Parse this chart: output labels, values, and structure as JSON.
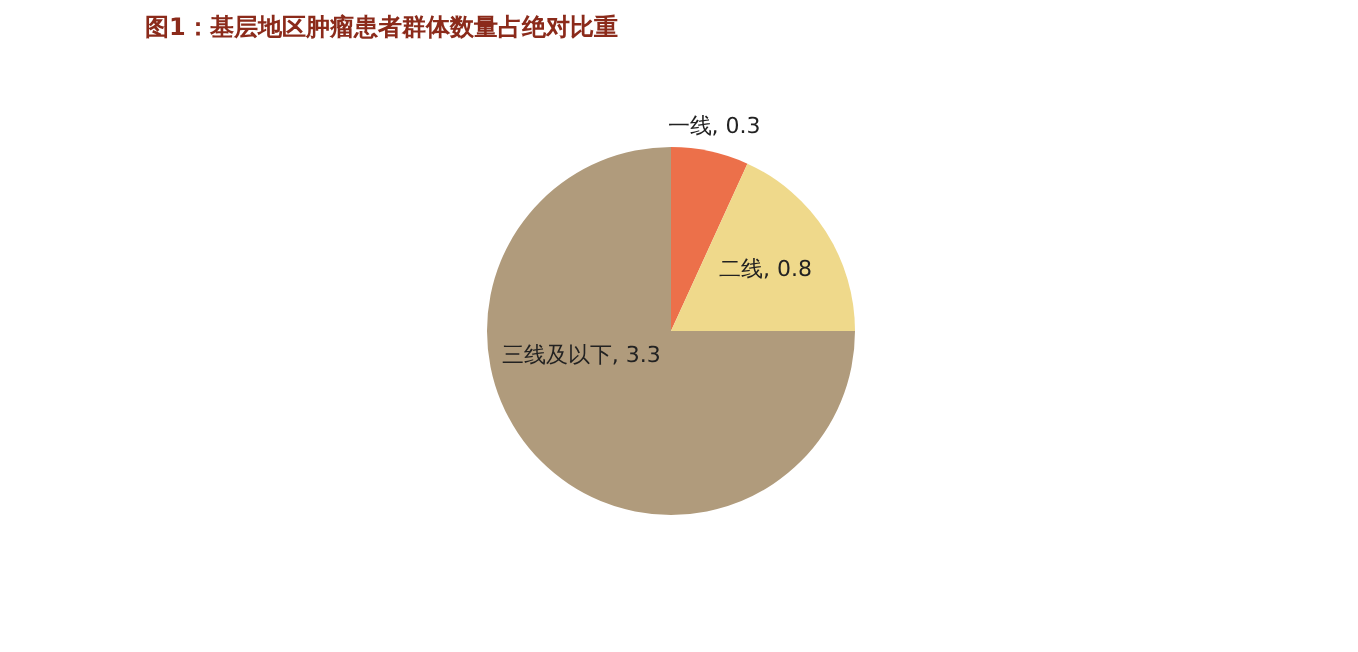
{
  "chart_data": {
    "type": "pie",
    "title": "图1：基层地区肿瘤患者群体数量占绝对比重",
    "categories": [
      "一线",
      "二线",
      "三线及以下"
    ],
    "values": [
      0.3,
      0.8,
      3.3
    ],
    "value_labels": [
      ", 0.3",
      ", 0.8",
      ", 3.3"
    ],
    "colors": [
      "#ec704a",
      "#efd98b",
      "#b09b7c"
    ]
  }
}
